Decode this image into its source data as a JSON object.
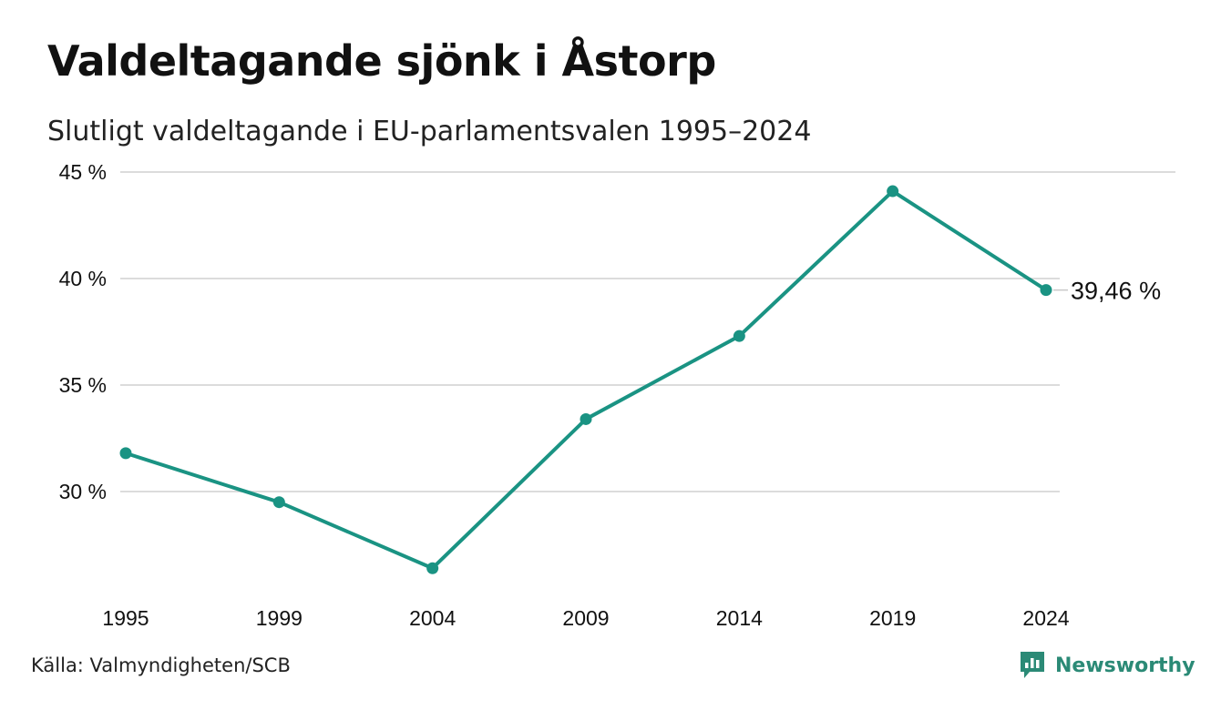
{
  "header": {
    "title": "Valdeltagande sjönk i Åstorp",
    "subtitle": "Slutligt valdeltagande i EU-parlamentsvalen 1995–2024"
  },
  "footer": {
    "source": "Källa: Valmyndigheten/SCB",
    "brand": "Newsworthy"
  },
  "colors": {
    "line": "#1a9383",
    "grid": "#dcdcdc",
    "brand": "#2b8a76"
  },
  "chart_data": {
    "type": "line",
    "title": "Valdeltagande sjönk i Åstorp",
    "subtitle": "Slutligt valdeltagande i EU-parlamentsvalen 1995–2024",
    "x": [
      "1995",
      "1999",
      "2004",
      "2009",
      "2014",
      "2019",
      "2024"
    ],
    "series": [
      {
        "values": [
          31.8,
          29.5,
          26.4,
          33.4,
          37.3,
          44.1,
          39.46
        ]
      }
    ],
    "y_ticks": [
      30,
      35,
      40,
      45
    ],
    "y_tick_labels": [
      "30 %",
      "35 %",
      "40 %",
      "45 %"
    ],
    "ylim": [
      26,
      45
    ],
    "end_label": "39,46 %",
    "grid": true,
    "legend": "none"
  }
}
